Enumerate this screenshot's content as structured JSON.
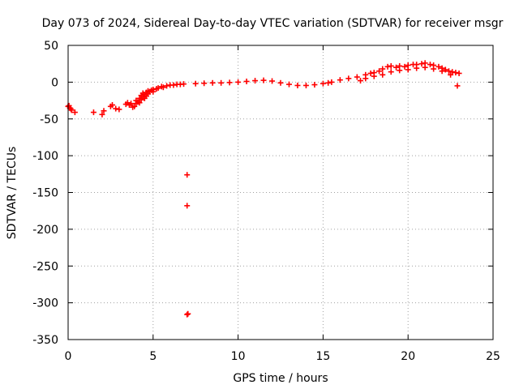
{
  "chart_data": {
    "type": "scatter",
    "title": "Day 073 of 2024, Sidereal Day-to-day VTEC variation (SDTVAR) for receiver msgr",
    "xlabel": "GPS time / hours",
    "ylabel": "SDTVAR / TECUs",
    "xlim": [
      0,
      25
    ],
    "ylim": [
      -350,
      50
    ],
    "xticks": [
      0,
      5,
      10,
      15,
      20,
      25
    ],
    "yticks": [
      50,
      0,
      -50,
      -100,
      -150,
      -200,
      -250,
      -300,
      -350
    ],
    "grid": true,
    "marker": "+",
    "series_color": "#ff0000",
    "series": [
      {
        "name": "SDTVAR",
        "points": [
          [
            0.0,
            -33
          ],
          [
            0.05,
            -32
          ],
          [
            0.1,
            -35
          ],
          [
            0.15,
            -36
          ],
          [
            0.2,
            -38
          ],
          [
            0.4,
            -41
          ],
          [
            1.5,
            -41
          ],
          [
            2.0,
            -44
          ],
          [
            2.1,
            -39
          ],
          [
            2.5,
            -33
          ],
          [
            2.6,
            -31
          ],
          [
            2.8,
            -36
          ],
          [
            3.0,
            -37
          ],
          [
            3.4,
            -30
          ],
          [
            3.5,
            -28
          ],
          [
            3.6,
            -31
          ],
          [
            3.7,
            -29
          ],
          [
            3.8,
            -34
          ],
          [
            3.9,
            -33
          ],
          [
            4.0,
            -29
          ],
          [
            4.0,
            -25
          ],
          [
            4.1,
            -27
          ],
          [
            4.2,
            -22
          ],
          [
            4.2,
            -28
          ],
          [
            4.3,
            -18
          ],
          [
            4.3,
            -24
          ],
          [
            4.4,
            -20
          ],
          [
            4.4,
            -15
          ],
          [
            4.5,
            -17
          ],
          [
            4.5,
            -22
          ],
          [
            4.6,
            -14
          ],
          [
            4.6,
            -19
          ],
          [
            4.7,
            -12
          ],
          [
            4.7,
            -16
          ],
          [
            4.8,
            -13
          ],
          [
            4.9,
            -11
          ],
          [
            5.0,
            -10
          ],
          [
            5.0,
            -13
          ],
          [
            5.2,
            -9
          ],
          [
            5.3,
            -8
          ],
          [
            5.5,
            -6
          ],
          [
            5.6,
            -7
          ],
          [
            5.8,
            -5
          ],
          [
            6.0,
            -4
          ],
          [
            6.2,
            -4
          ],
          [
            6.4,
            -3
          ],
          [
            6.6,
            -3
          ],
          [
            6.8,
            -2.5
          ],
          [
            7.0,
            -126
          ],
          [
            7.0,
            -168
          ],
          [
            7.0,
            -316
          ],
          [
            7.05,
            -315
          ],
          [
            7.5,
            -2
          ],
          [
            8.0,
            -1.5
          ],
          [
            8.5,
            -1
          ],
          [
            9.0,
            -1
          ],
          [
            9.5,
            -0.5
          ],
          [
            10.0,
            0
          ],
          [
            10.5,
            1
          ],
          [
            11.0,
            2
          ],
          [
            11.5,
            2.5
          ],
          [
            12.0,
            1.5
          ],
          [
            12.5,
            -1
          ],
          [
            13.0,
            -3
          ],
          [
            13.5,
            -4.5
          ],
          [
            14.0,
            -4.5
          ],
          [
            14.5,
            -3.5
          ],
          [
            15.0,
            -2
          ],
          [
            15.3,
            -1
          ],
          [
            15.5,
            0
          ],
          [
            16.0,
            3
          ],
          [
            16.5,
            5
          ],
          [
            17.0,
            7
          ],
          [
            17.2,
            2
          ],
          [
            17.5,
            10
          ],
          [
            17.5,
            5
          ],
          [
            17.8,
            12
          ],
          [
            18.0,
            13
          ],
          [
            18.0,
            8
          ],
          [
            18.3,
            15
          ],
          [
            18.5,
            18
          ],
          [
            18.5,
            10
          ],
          [
            18.8,
            21
          ],
          [
            19.0,
            22
          ],
          [
            19.0,
            14
          ],
          [
            19.3,
            20
          ],
          [
            19.5,
            22
          ],
          [
            19.5,
            16
          ],
          [
            19.8,
            21
          ],
          [
            20.0,
            23
          ],
          [
            20.0,
            17
          ],
          [
            20.3,
            24
          ],
          [
            20.5,
            24
          ],
          [
            20.5,
            19
          ],
          [
            20.8,
            25
          ],
          [
            21.0,
            26
          ],
          [
            21.0,
            20
          ],
          [
            21.3,
            24
          ],
          [
            21.5,
            23
          ],
          [
            21.5,
            18
          ],
          [
            21.8,
            21
          ],
          [
            22.0,
            19
          ],
          [
            22.0,
            15
          ],
          [
            22.2,
            17
          ],
          [
            22.4,
            15
          ],
          [
            22.5,
            10
          ],
          [
            22.6,
            14
          ],
          [
            22.8,
            13
          ],
          [
            22.9,
            -5
          ],
          [
            23.0,
            12
          ]
        ]
      }
    ]
  }
}
